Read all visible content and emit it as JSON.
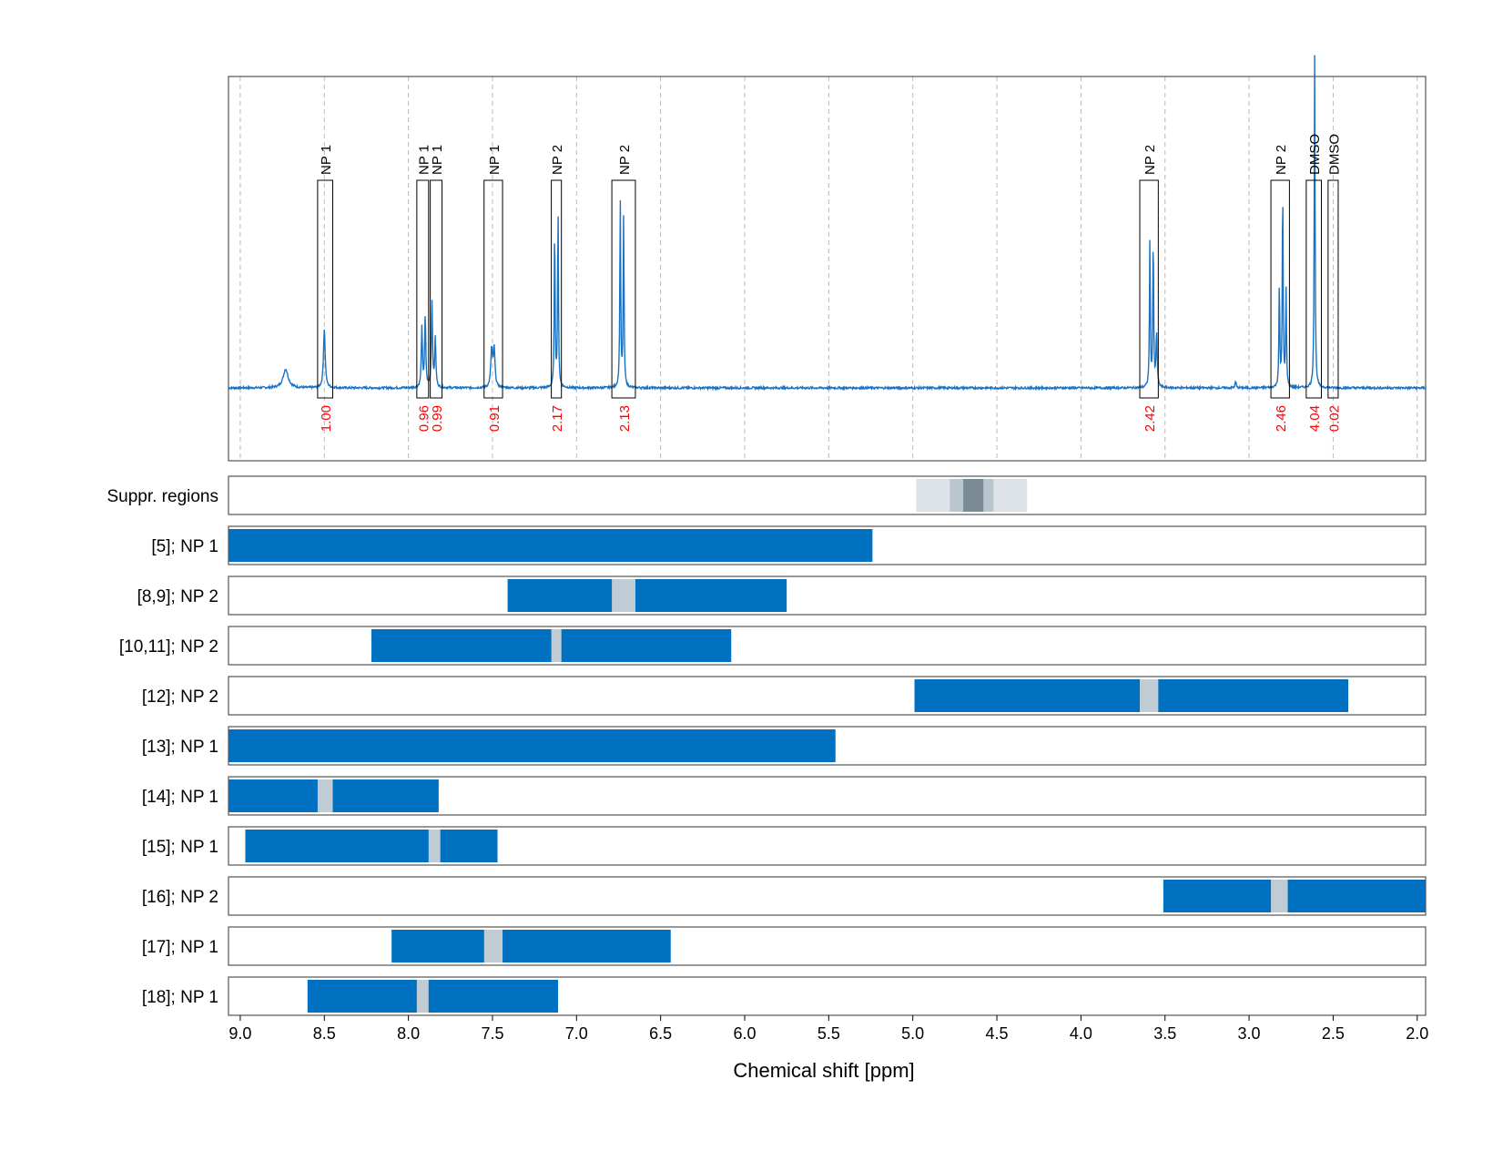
{
  "chart_data": {
    "type": "line",
    "xlabel": "Chemical shift [ppm]",
    "xlim": [
      9.07,
      1.95
    ],
    "x_axis_reversed": true,
    "x_ticks": [
      "9.0",
      "8.5",
      "8.0",
      "7.5",
      "7.0",
      "6.5",
      "6.0",
      "5.5",
      "5.0",
      "4.5",
      "4.0",
      "3.5",
      "3.0",
      "2.5",
      "2.0"
    ],
    "grid": "vertical dashed gridlines at each x tick (spectrum panel)",
    "colors": {
      "spectrum": "#1a73c2",
      "bar": "#0070c0",
      "gap": "#c0ccd4",
      "integral": "#ff0000",
      "suppr_light": "#dde3e8",
      "suppr_mid": "#b9c6cd",
      "suppr_dark": "#7b8b96",
      "frame": "#555555",
      "grid": "#b8b8b8"
    },
    "spectrum": {
      "baseline": 0,
      "peaks": [
        {
          "shift": 8.73,
          "height": 0.035,
          "width": 0.018
        },
        {
          "shift": 8.5,
          "height": 0.11,
          "width": 0.006
        },
        {
          "shift": 7.92,
          "height": 0.11,
          "width": 0.004
        },
        {
          "shift": 7.9,
          "height": 0.13,
          "width": 0.004
        },
        {
          "shift": 7.86,
          "height": 0.16,
          "width": 0.004
        },
        {
          "shift": 7.84,
          "height": 0.09,
          "width": 0.004
        },
        {
          "shift": 7.505,
          "height": 0.07,
          "width": 0.006
        },
        {
          "shift": 7.49,
          "height": 0.07,
          "width": 0.006
        },
        {
          "shift": 7.13,
          "height": 0.3,
          "width": 0.003
        },
        {
          "shift": 7.11,
          "height": 0.33,
          "width": 0.003
        },
        {
          "shift": 6.74,
          "height": 0.35,
          "width": 0.003
        },
        {
          "shift": 6.72,
          "height": 0.32,
          "width": 0.003
        },
        {
          "shift": 3.59,
          "height": 0.27,
          "width": 0.003
        },
        {
          "shift": 3.57,
          "height": 0.28,
          "width": 0.003
        },
        {
          "shift": 3.55,
          "height": 0.1,
          "width": 0.004
        },
        {
          "shift": 3.08,
          "height": 0.012,
          "width": 0.004
        },
        {
          "shift": 2.82,
          "height": 0.19,
          "width": 0.003
        },
        {
          "shift": 2.8,
          "height": 0.37,
          "width": 0.003
        },
        {
          "shift": 2.78,
          "height": 0.18,
          "width": 0.003
        },
        {
          "shift": 2.61,
          "height": 0.62,
          "width": 0.003
        }
      ]
    },
    "annotations": [
      {
        "label": "NP 1",
        "from": 8.54,
        "to": 8.45,
        "integral": "1.00",
        "box_top": 0.65
      },
      {
        "label": "NP 1",
        "from": 7.95,
        "to": 7.88,
        "integral": "0.96",
        "box_top": 0.65
      },
      {
        "label": "NP 1",
        "from": 7.87,
        "to": 7.8,
        "integral": "0.99",
        "box_top": 0.65
      },
      {
        "label": "NP 1",
        "from": 7.55,
        "to": 7.44,
        "integral": "0.91",
        "box_top": 0.65
      },
      {
        "label": "NP 2",
        "from": 7.15,
        "to": 7.09,
        "integral": "2.17",
        "box_top": 0.65
      },
      {
        "label": "NP 2",
        "from": 6.79,
        "to": 6.65,
        "integral": "2.13",
        "box_top": 0.65
      },
      {
        "label": "NP 2",
        "from": 3.65,
        "to": 3.54,
        "integral": "2.42",
        "box_top": 0.65
      },
      {
        "label": "NP 2",
        "from": 2.87,
        "to": 2.76,
        "integral": "2.46",
        "box_top": 0.65
      },
      {
        "label": "DMSO",
        "from": 2.66,
        "to": 2.57,
        "integral": "4.04",
        "box_top": 0.65
      },
      {
        "label": "DMSO",
        "from": 2.53,
        "to": 2.47,
        "integral": "0.02",
        "box_top": 0.65
      }
    ],
    "suppressed_regions": {
      "label": "Suppr. regions",
      "layers": [
        {
          "from": 4.98,
          "to": 4.32,
          "shade": "light"
        },
        {
          "from": 4.78,
          "to": 4.52,
          "shade": "mid"
        },
        {
          "from": 4.7,
          "to": 4.58,
          "shade": "dark"
        }
      ]
    },
    "rows": [
      {
        "label": "[5]; NP 1",
        "from": 9.07,
        "to": 5.24,
        "gaps": []
      },
      {
        "label": "[8,9]; NP 2",
        "from": 7.41,
        "to": 5.75,
        "gaps": [
          [
            6.79,
            6.65
          ]
        ]
      },
      {
        "label": "[10,11]; NP 2",
        "from": 8.22,
        "to": 6.08,
        "gaps": [
          [
            7.15,
            7.09
          ]
        ]
      },
      {
        "label": "[12]; NP 2",
        "from": 4.99,
        "to": 2.41,
        "gaps": [
          [
            3.65,
            3.54
          ]
        ]
      },
      {
        "label": "[13]; NP 1",
        "from": 9.07,
        "to": 5.46,
        "gaps": []
      },
      {
        "label": "[14]; NP 1",
        "from": 9.07,
        "to": 7.82,
        "gaps": [
          [
            8.54,
            8.45
          ]
        ]
      },
      {
        "label": "[15]; NP 1",
        "from": 8.97,
        "to": 7.47,
        "gaps": [
          [
            7.88,
            7.81
          ]
        ]
      },
      {
        "label": "[16]; NP 2",
        "from": 3.51,
        "to": 1.95,
        "gaps": [
          [
            2.87,
            2.77
          ]
        ]
      },
      {
        "label": "[17]; NP 1",
        "from": 8.1,
        "to": 6.44,
        "gaps": [
          [
            7.55,
            7.44
          ]
        ]
      },
      {
        "label": "[18]; NP 1",
        "from": 8.6,
        "to": 7.11,
        "gaps": [
          [
            7.95,
            7.88
          ]
        ]
      }
    ]
  }
}
